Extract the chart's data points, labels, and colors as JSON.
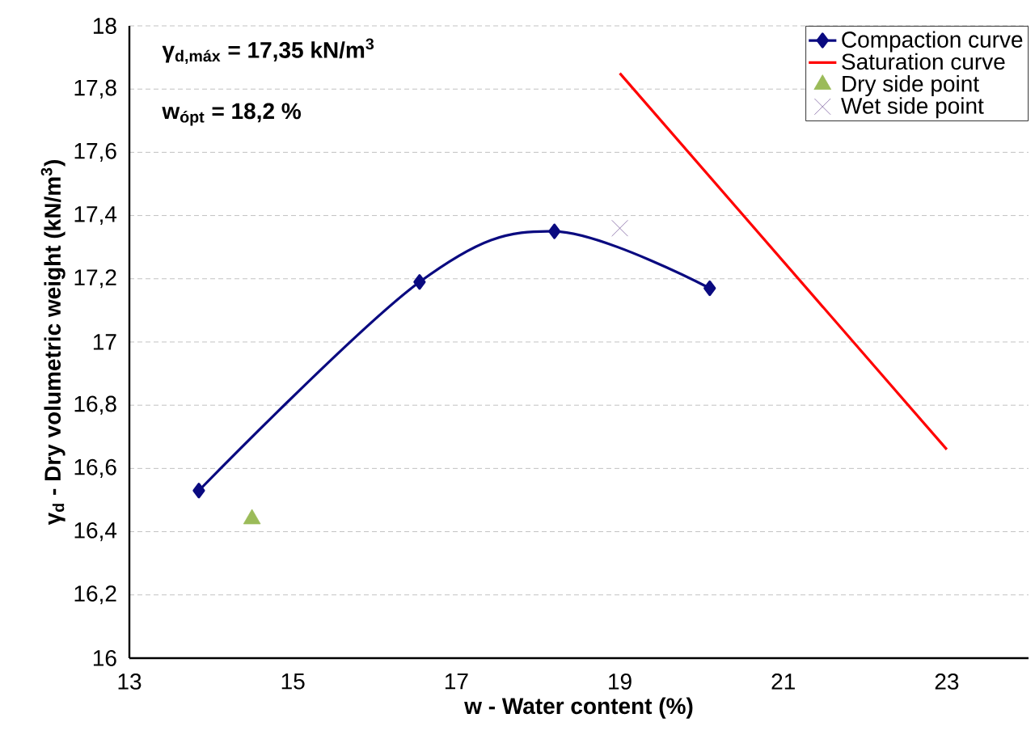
{
  "chart_data": {
    "type": "line",
    "xlabel": "w - Water content (%)",
    "ylabel": "γ$_{d}$ - Dry volumetric weight (kN/m$^{3}$)",
    "annotations": [
      "γ$_{d,máx}$ = 17,35 kN/m$^{3}$",
      "w$_{ópt}$ = 18,2 %"
    ],
    "series": [
      {
        "name": "Compaction curve",
        "color": "#0a0a80",
        "marker": "diamond",
        "line_style": "solid",
        "x": [
          13.85,
          16.55,
          18.2,
          20.1
        ],
        "values": [
          16.53,
          17.19,
          17.35,
          17.17
        ]
      },
      {
        "name": "Saturation curve",
        "color": "#ff0000",
        "marker": "none",
        "line_style": "solid",
        "x": [
          19,
          23
        ],
        "values": [
          17.85,
          16.66
        ]
      },
      {
        "name": "Dry side point",
        "type": "scatter",
        "color": "#9bbb59",
        "marker": "triangle",
        "x": [
          14.5
        ],
        "values": [
          16.44
        ]
      },
      {
        "name": "Wet side point",
        "type": "scatter",
        "color": "#8064a2",
        "marker": "cross",
        "x": [
          19
        ],
        "values": [
          17.36
        ]
      }
    ],
    "xlim": [
      13,
      24
    ],
    "ylim": [
      16,
      18
    ],
    "xticks": [
      13,
      15,
      17,
      19,
      21,
      23
    ],
    "yticks": [
      16,
      {
        "value": 16.2,
        "label": "16,2"
      },
      {
        "value": 16.4,
        "label": "16,4"
      },
      {
        "value": 16.6,
        "label": "16,6"
      },
      {
        "value": 16.8,
        "label": "16,8"
      },
      17,
      {
        "value": 17.2,
        "label": "17,2"
      },
      {
        "value": 17.4,
        "label": "17,4"
      },
      {
        "value": 17.6,
        "label": "17,6"
      },
      {
        "value": 17.8,
        "label": "17,8"
      },
      18
    ],
    "grid": "y",
    "legend": "top right"
  }
}
